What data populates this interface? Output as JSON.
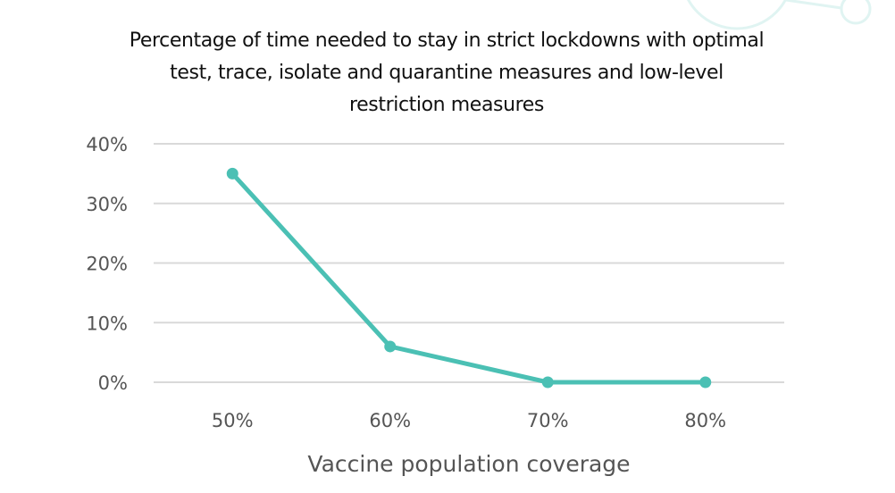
{
  "chart_data": {
    "type": "line",
    "title": "Percentage of time needed to stay in strict lockdowns with optimal test, trace, isolate and quarantine measures and low-level restriction measures",
    "xlabel": "Vaccine population coverage",
    "ylabel": "",
    "categories": [
      "50%",
      "60%",
      "70%",
      "80%"
    ],
    "series": [
      {
        "values": [
          35,
          6,
          0,
          0
        ]
      }
    ],
    "ylim": [
      0,
      40
    ],
    "yticks": [
      0,
      10,
      20,
      30,
      40
    ],
    "ytick_labels": [
      "0%",
      "10%",
      "20%",
      "30%",
      "40%"
    ],
    "grid": "horizontal",
    "legend": "none",
    "colors": {
      "line": "#4bc0b4",
      "grid": "#d9d9d9",
      "decoration": "#e0f4f2"
    }
  }
}
